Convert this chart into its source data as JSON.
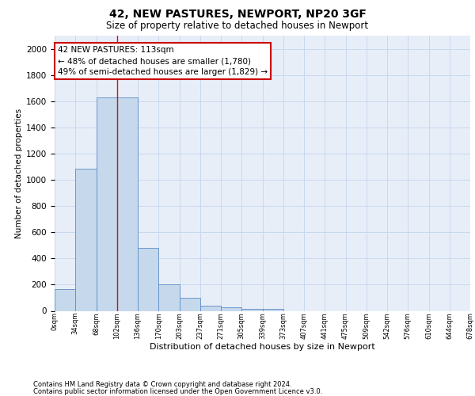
{
  "title1": "42, NEW PASTURES, NEWPORT, NP20 3GF",
  "title2": "Size of property relative to detached houses in Newport",
  "xlabel": "Distribution of detached houses by size in Newport",
  "ylabel": "Number of detached properties",
  "bin_labels": [
    "0sqm",
    "34sqm",
    "68sqm",
    "102sqm",
    "136sqm",
    "170sqm",
    "203sqm",
    "237sqm",
    "271sqm",
    "305sqm",
    "339sqm",
    "373sqm",
    "407sqm",
    "441sqm",
    "475sqm",
    "509sqm",
    "542sqm",
    "576sqm",
    "610sqm",
    "644sqm",
    "678sqm"
  ],
  "bar_values": [
    165,
    1085,
    1630,
    1630,
    480,
    200,
    100,
    42,
    28,
    18,
    18,
    0,
    0,
    0,
    0,
    0,
    0,
    0,
    0,
    0
  ],
  "bar_color": "#c5d8ec",
  "bar_edge_color": "#5b8dc8",
  "vertical_line_x": 3,
  "annotation_line1": "42 NEW PASTURES: 113sqm",
  "annotation_line2": "← 48% of detached houses are smaller (1,780)",
  "annotation_line3": "49% of semi-detached houses are larger (1,829) →",
  "annotation_box_color": "#ffffff",
  "annotation_box_edge_color": "#cc0000",
  "grid_color": "#c8d8ee",
  "background_color": "#e8eef8",
  "footer1": "Contains HM Land Registry data © Crown copyright and database right 2024.",
  "footer2": "Contains public sector information licensed under the Open Government Licence v3.0.",
  "ylim": [
    0,
    2100
  ],
  "yticks": [
    0,
    200,
    400,
    600,
    800,
    1000,
    1200,
    1400,
    1600,
    1800,
    2000
  ]
}
